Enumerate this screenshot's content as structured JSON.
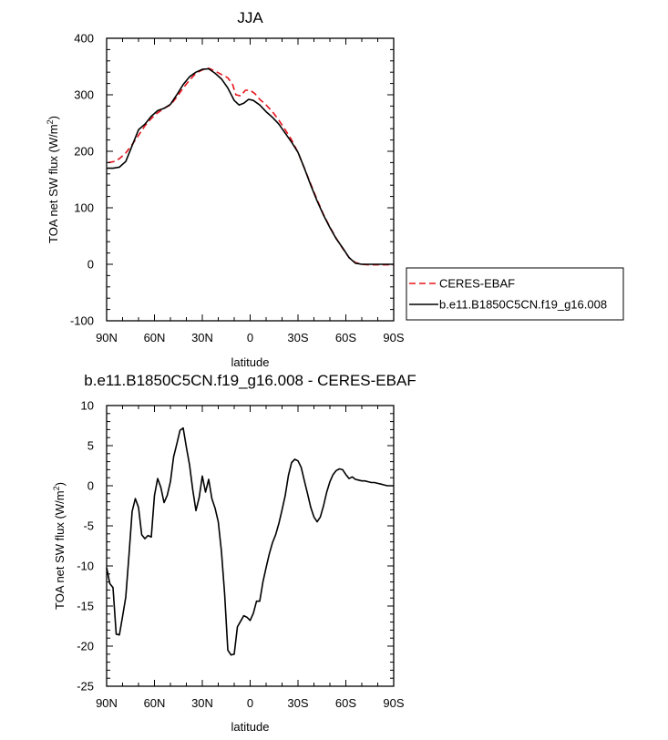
{
  "chart_data": [
    {
      "type": "line",
      "title": "JJA",
      "xlabel": "latitude",
      "ylabel": "TOA net SW flux (W/m",
      "ylabel_sup": "2",
      "ylabel_close": ")",
      "x_ticks": [
        {
          "lat": -90,
          "label": "90N"
        },
        {
          "lat": -60,
          "label": "60N"
        },
        {
          "lat": -30,
          "label": "30N"
        },
        {
          "lat": 0,
          "label": "0"
        },
        {
          "lat": 30,
          "label": "30S"
        },
        {
          "lat": 60,
          "label": "60S"
        },
        {
          "lat": 90,
          "label": "90S"
        }
      ],
      "xlim": [
        -90,
        90
      ],
      "ylim": [
        -100,
        400
      ],
      "y_ticks": [
        -100,
        0,
        100,
        200,
        300,
        400
      ],
      "legend_location": "outside-right",
      "series": [
        {
          "name": "CERES-EBAF",
          "color": "#e8141c",
          "dash": "dashed",
          "x": [
            -89,
            -85,
            -82,
            -78,
            -74,
            -70,
            -66,
            -62,
            -58,
            -54,
            -50,
            -46,
            -42,
            -38,
            -34,
            -30,
            -26,
            -22,
            -18,
            -14,
            -11,
            -9,
            -6,
            -3,
            0,
            3,
            6,
            10,
            14,
            18,
            22,
            26,
            30,
            34,
            38,
            42,
            46,
            50,
            54,
            58,
            62,
            66,
            70,
            74,
            78,
            82,
            86,
            90
          ],
          "y": [
            180,
            182,
            187,
            197,
            212,
            228,
            245,
            258,
            268,
            276,
            282,
            296,
            312,
            326,
            338,
            344,
            347,
            342,
            336,
            330,
            318,
            300,
            298,
            308,
            308,
            302,
            292,
            282,
            270,
            255,
            238,
            220,
            198,
            170,
            142,
            114,
            88,
            66,
            46,
            28,
            12,
            3,
            0,
            -1,
            -1,
            -1,
            -1,
            -1
          ]
        },
        {
          "name": "b.e11.B1850C5CN.f19_g16.008",
          "color": "#000000",
          "dash": "solid",
          "x": [
            -90,
            -86,
            -82,
            -78,
            -74,
            -70,
            -66,
            -62,
            -58,
            -54,
            -50,
            -46,
            -42,
            -38,
            -34,
            -30,
            -26,
            -22,
            -18,
            -14,
            -10,
            -7,
            -4,
            -1,
            2,
            6,
            10,
            14,
            18,
            22,
            26,
            30,
            34,
            38,
            42,
            46,
            50,
            54,
            58,
            62,
            66,
            70,
            74,
            78,
            82,
            86,
            90
          ],
          "y": [
            170,
            170,
            172,
            182,
            210,
            238,
            248,
            262,
            272,
            276,
            283,
            300,
            318,
            332,
            340,
            345,
            346,
            338,
            328,
            312,
            290,
            282,
            285,
            292,
            290,
            282,
            270,
            260,
            248,
            232,
            216,
            198,
            170,
            140,
            112,
            87,
            65,
            45,
            29,
            12,
            2,
            0,
            0,
            0,
            0,
            0,
            0
          ]
        }
      ]
    },
    {
      "type": "line",
      "title": "b.e11.B1850C5CN.f19_g16.008 - CERES-EBAF",
      "xlabel": "latitude",
      "ylabel": "TOA net SW flux (W/m",
      "ylabel_sup": "2",
      "ylabel_close": ")",
      "x_ticks": [
        {
          "lat": -90,
          "label": "90N"
        },
        {
          "lat": -60,
          "label": "60N"
        },
        {
          "lat": -30,
          "label": "30N"
        },
        {
          "lat": 0,
          "label": "0"
        },
        {
          "lat": 30,
          "label": "30S"
        },
        {
          "lat": 60,
          "label": "60S"
        },
        {
          "lat": 90,
          "label": "90S"
        }
      ],
      "xlim": [
        -90,
        90
      ],
      "ylim": [
        -25,
        10
      ],
      "y_ticks": [
        -25,
        -20,
        -15,
        -10,
        -5,
        0,
        5,
        10
      ],
      "series": [
        {
          "name": "",
          "color": "#000000",
          "dash": "solid",
          "x": [
            -90,
            -88,
            -86,
            -84,
            -82,
            -80,
            -78,
            -76,
            -74,
            -72,
            -70,
            -68,
            -66,
            -64,
            -62,
            -60,
            -58,
            -56,
            -54,
            -52,
            -50,
            -48,
            -46,
            -44,
            -42,
            -40,
            -38,
            -36,
            -34,
            -32,
            -30,
            -28,
            -26,
            -24,
            -22,
            -20,
            -18,
            -16,
            -14,
            -12,
            -10,
            -8,
            -6,
            -4,
            -2,
            0,
            2,
            4,
            6,
            8,
            10,
            12,
            14,
            16,
            18,
            20,
            22,
            24,
            26,
            28,
            30,
            32,
            34,
            36,
            38,
            40,
            42,
            44,
            46,
            48,
            50,
            52,
            54,
            56,
            58,
            60,
            62,
            64,
            66,
            68,
            70,
            72,
            74,
            76,
            78,
            80,
            82,
            84,
            86,
            88,
            90
          ],
          "y": [
            -10.2,
            -12.2,
            -12.7,
            -18.5,
            -18.6,
            -16.3,
            -13.9,
            -8.7,
            -3.2,
            -1.6,
            -2.7,
            -6.1,
            -6.6,
            -6.2,
            -6.4,
            -1.2,
            0.9,
            -0.2,
            -2.1,
            -1.2,
            0.5,
            3.6,
            5.2,
            6.9,
            7.2,
            4.8,
            2.6,
            -0.5,
            -3.1,
            -1.5,
            1.2,
            -0.8,
            0.8,
            -1.6,
            -2.8,
            -4.5,
            -8.2,
            -13.5,
            -20.5,
            -21.1,
            -21.0,
            -17.6,
            -16.9,
            -16.2,
            -16.4,
            -16.8,
            -15.9,
            -14.4,
            -14.4,
            -12.0,
            -10.2,
            -8.5,
            -7.1,
            -6.1,
            -4.7,
            -3.0,
            -1.2,
            1.3,
            2.9,
            3.3,
            3.1,
            2.3,
            0.6,
            -1.0,
            -2.7,
            -3.9,
            -4.5,
            -3.9,
            -2.5,
            -0.8,
            0.5,
            1.4,
            1.9,
            2.1,
            2.0,
            1.4,
            0.9,
            1.1,
            0.8,
            0.7,
            0.6,
            0.6,
            0.5,
            0.4,
            0.4,
            0.3,
            0.2,
            0.1,
            0.0,
            0.0,
            0.0
          ]
        }
      ]
    }
  ]
}
